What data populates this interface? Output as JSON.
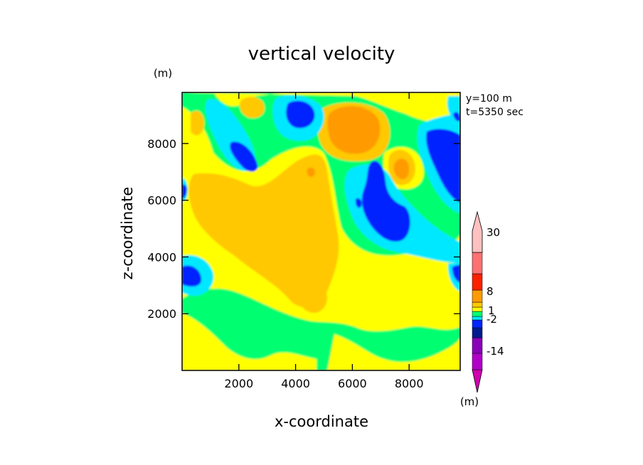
{
  "chart_data": {
    "type": "heatmap",
    "title": "vertical velocity",
    "xlabel": "x-coordinate",
    "ylabel": "z-coordinate",
    "y_unit": "(m)",
    "x_unit": "(m)",
    "info_lines": [
      "y=100 m",
      "t=5350 sec"
    ],
    "xlim": [
      0,
      9800
    ],
    "ylim": [
      0,
      9800
    ],
    "x_ticks": [
      2000,
      4000,
      6000,
      8000
    ],
    "y_ticks": [
      2000,
      4000,
      6000,
      8000
    ],
    "x_tick_labels": [
      "2000",
      "4000",
      "6000",
      "8000"
    ],
    "y_tick_labels": [
      "2000",
      "4000",
      "6000",
      "8000"
    ],
    "colorbar": {
      "bands": [
        {
          "color": "#d000b0",
          "kind": "lower-arrow"
        },
        {
          "color": "#b000c8"
        },
        {
          "color": "#8800b8"
        },
        {
          "color": "#001a90"
        },
        {
          "color": "#0024ff"
        },
        {
          "color": "#00e8ff"
        },
        {
          "color": "#00ff70"
        },
        {
          "color": "#ffff00"
        },
        {
          "color": "#ffc800"
        },
        {
          "color": "#ff9a00"
        },
        {
          "color": "#ff2000"
        },
        {
          "color": "#ff7070"
        },
        {
          "color": "#ffc0c0",
          "kind": "upper-arrow"
        }
      ],
      "labels": [
        "30",
        "8",
        "1",
        "-2",
        "-14"
      ]
    },
    "level_colors": {
      "strong_down": "#0024ff",
      "down": "#00e8ff",
      "weak_down": "#00ff70",
      "neutral": "#ffff00",
      "weak_up": "#ffc800",
      "up": "#ff9a00"
    }
  }
}
